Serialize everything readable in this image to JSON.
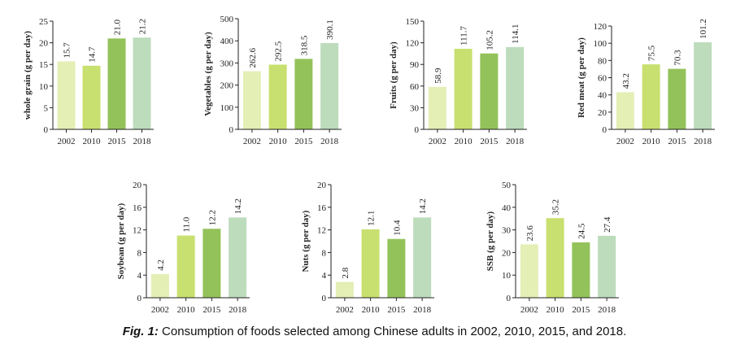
{
  "caption": {
    "label": "Fig. 1:",
    "text": "Consumption of foods selected among Chinese adults in 2002, 2010, 2015, and 2018."
  },
  "colors": [
    "#e3efb5",
    "#c8e06f",
    "#93c25a",
    "#bddcbc"
  ],
  "chart_data": [
    {
      "type": "bar",
      "title": "",
      "xlabel": "",
      "ylabel": "whole grain (g per day)",
      "categories": [
        "2002",
        "2010",
        "2015",
        "2018"
      ],
      "values": [
        15.7,
        14.7,
        21.0,
        21.2
      ],
      "value_labels": [
        "15.7",
        "14.7",
        "21.0",
        "21.2"
      ],
      "ylim": [
        0,
        25
      ],
      "yticks": [
        "0",
        "5",
        "10",
        "15",
        "20",
        "25"
      ],
      "grid": false
    },
    {
      "type": "bar",
      "title": "",
      "xlabel": "",
      "ylabel": "Vegetables (g per day)",
      "categories": [
        "2002",
        "2010",
        "2015",
        "2018"
      ],
      "values": [
        262.6,
        292.5,
        318.5,
        390.1
      ],
      "value_labels": [
        "262.6",
        "292.5",
        "318.5",
        "390.1"
      ],
      "ylim": [
        0,
        500
      ],
      "yticks": [
        "0",
        "100",
        "200",
        "300",
        "400",
        "500"
      ],
      "grid": false
    },
    {
      "type": "bar",
      "title": "",
      "xlabel": "",
      "ylabel": "Fruits (g per day)",
      "categories": [
        "2002",
        "2010",
        "2015",
        "2018"
      ],
      "values": [
        58.9,
        111.7,
        105.2,
        114.1
      ],
      "value_labels": [
        "58.9",
        "111.7",
        "105.2",
        "114.1"
      ],
      "ylim": [
        0,
        150
      ],
      "yticks": [
        "0",
        "30",
        "60",
        "90",
        "120",
        "150"
      ],
      "grid": false
    },
    {
      "type": "bar",
      "title": "",
      "xlabel": "",
      "ylabel": "Red meat (g per day)",
      "categories": [
        "2002",
        "2010",
        "2015",
        "2018"
      ],
      "values": [
        43.2,
        75.5,
        70.3,
        101.2
      ],
      "value_labels": [
        "43.2",
        "75.5",
        "70.3",
        "101.2"
      ],
      "ylim": [
        0,
        120
      ],
      "yticks": [
        "0",
        "20",
        "40",
        "60",
        "80",
        "100",
        "120"
      ],
      "grid": false
    },
    {
      "type": "bar",
      "title": "",
      "xlabel": "",
      "ylabel": "Soybean (g per day)",
      "categories": [
        "2002",
        "2010",
        "2015",
        "2018"
      ],
      "values": [
        4.2,
        11.0,
        12.2,
        14.2
      ],
      "value_labels": [
        "4.2",
        "11.0",
        "12.2",
        "14.2"
      ],
      "ylim": [
        0,
        20
      ],
      "yticks": [
        "0",
        "4",
        "8",
        "12",
        "16",
        "20"
      ],
      "grid": false
    },
    {
      "type": "bar",
      "title": "",
      "xlabel": "",
      "ylabel": "Nuts (g per day)",
      "categories": [
        "2002",
        "2010",
        "2015",
        "2018"
      ],
      "values": [
        2.8,
        12.1,
        10.4,
        14.2
      ],
      "value_labels": [
        "2.8",
        "12.1",
        "10.4",
        "14.2"
      ],
      "ylim": [
        0,
        20
      ],
      "yticks": [
        "0",
        "4",
        "8",
        "12",
        "16",
        "20"
      ],
      "grid": false
    },
    {
      "type": "bar",
      "title": "",
      "xlabel": "",
      "ylabel": "SSB (g per day)",
      "categories": [
        "2002",
        "2010",
        "2015",
        "2018"
      ],
      "values": [
        23.6,
        35.2,
        24.5,
        27.4
      ],
      "value_labels": [
        "23.6",
        "35.2",
        "24.5",
        "27.4"
      ],
      "ylim": [
        0,
        50
      ],
      "yticks": [
        "0",
        "10",
        "20",
        "30",
        "40",
        "50"
      ],
      "grid": false
    }
  ]
}
